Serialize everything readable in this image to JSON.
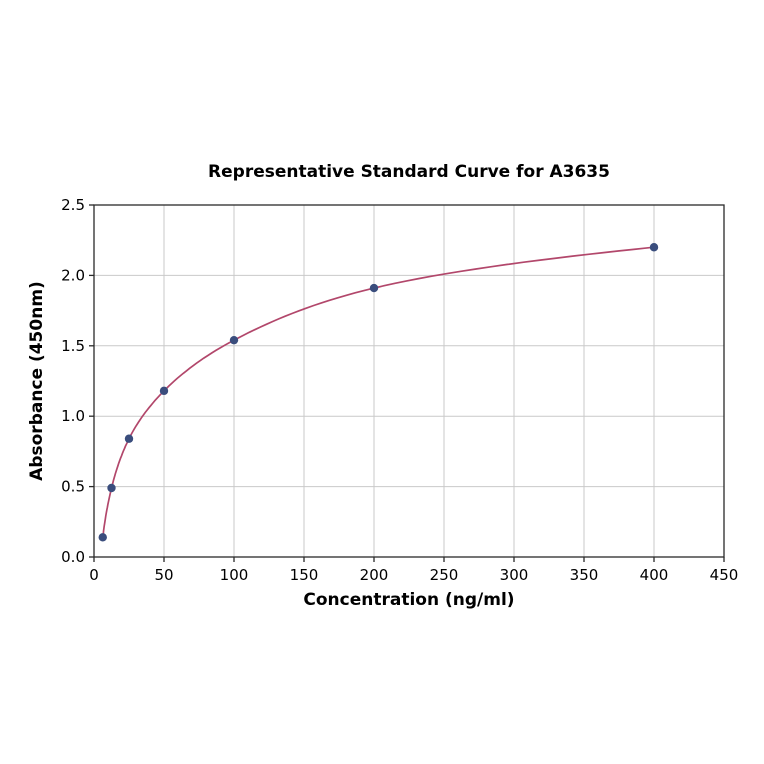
{
  "chart_data": {
    "type": "line",
    "title": "Representative Standard Curve for A3635",
    "xlabel": "Concentration (ng/ml)",
    "ylabel": "Absorbance (450nm)",
    "xlim": [
      0,
      450
    ],
    "ylim": [
      0,
      2.5
    ],
    "xticks": [
      0,
      50,
      100,
      150,
      200,
      250,
      300,
      350,
      400,
      450
    ],
    "xtick_labels": [
      "0",
      "50",
      "100",
      "150",
      "200",
      "250",
      "300",
      "350",
      "400",
      "450"
    ],
    "yticks": [
      0.0,
      0.5,
      1.0,
      1.5,
      2.0,
      2.5
    ],
    "ytick_labels": [
      "0.0",
      "0.5",
      "1.0",
      "1.5",
      "2.0",
      "2.5"
    ],
    "grid": true,
    "legend": "none",
    "colors": {
      "line_color": "#b2476b",
      "marker_color": "#3a4d7d",
      "grid_color": "#c9c9c9",
      "background": "#ffffff"
    },
    "series": [
      {
        "name": "standard-curve",
        "line_color": "#b2476b",
        "marker_color": "#3a4d7d",
        "points": [
          {
            "x": 6.25,
            "y": 0.14
          },
          {
            "x": 12.5,
            "y": 0.49
          },
          {
            "x": 25,
            "y": 0.84
          },
          {
            "x": 50,
            "y": 1.18
          },
          {
            "x": 100,
            "y": 1.54
          },
          {
            "x": 200,
            "y": 1.91
          },
          {
            "x": 400,
            "y": 2.2
          }
        ]
      }
    ]
  }
}
